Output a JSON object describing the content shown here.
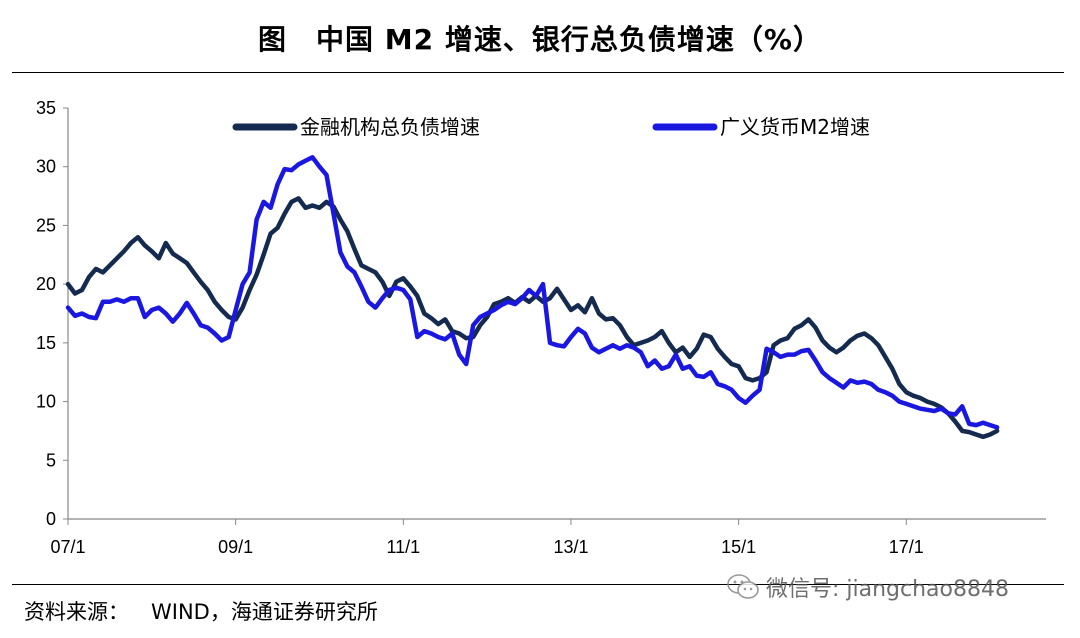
{
  "title": "图　中国 M2 增速、银行总负债增速（%）",
  "source": {
    "label": "资料来源：",
    "text": "WIND，海通证券研究所"
  },
  "watermark": {
    "icon": "wechat-icon",
    "text": "微信号: jiangchao8848"
  },
  "chart_data": {
    "type": "line",
    "title": "图　中国 M2 增速、银行总负债增速（%）",
    "ylim": [
      0,
      35
    ],
    "yticks": [
      0,
      5,
      10,
      15,
      20,
      25,
      30,
      35
    ],
    "x_tick_labels": [
      "07/1",
      "09/1",
      "11/1",
      "13/1",
      "15/1",
      "17/1"
    ],
    "x_tick_months": [
      0,
      24,
      48,
      72,
      96,
      120
    ],
    "x_range_months": [
      0,
      140
    ],
    "grid": false,
    "legend_position": "top",
    "series": [
      {
        "name": "金融机构总负债增速",
        "color": "#152a4f",
        "points": [
          [
            0,
            20
          ],
          [
            1,
            19.2
          ],
          [
            2,
            19.5
          ],
          [
            3,
            20.6
          ],
          [
            4,
            21.3
          ],
          [
            5,
            21
          ],
          [
            6,
            21.6
          ],
          [
            7,
            22.2
          ],
          [
            8,
            22.8
          ],
          [
            9,
            23.5
          ],
          [
            10,
            24
          ],
          [
            11,
            23.3
          ],
          [
            12,
            22.8
          ],
          [
            13,
            22.2
          ],
          [
            14,
            23.5
          ],
          [
            15,
            22.6
          ],
          [
            16,
            22.2
          ],
          [
            17,
            21.8
          ],
          [
            18,
            21
          ],
          [
            19,
            20.2
          ],
          [
            20,
            19.5
          ],
          [
            21,
            18.5
          ],
          [
            22,
            17.8
          ],
          [
            23,
            17.2
          ],
          [
            24,
            17
          ],
          [
            25,
            18
          ],
          [
            26,
            19.5
          ],
          [
            27,
            20.8
          ],
          [
            28,
            22.5
          ],
          [
            29,
            24.3
          ],
          [
            30,
            24.8
          ],
          [
            31,
            26
          ],
          [
            32,
            27
          ],
          [
            33,
            27.3
          ],
          [
            34,
            26.5
          ],
          [
            35,
            26.7
          ],
          [
            36,
            26.5
          ],
          [
            37,
            27
          ],
          [
            38,
            26.6
          ],
          [
            39,
            25.5
          ],
          [
            40,
            24.5
          ],
          [
            41,
            23
          ],
          [
            42,
            21.6
          ],
          [
            43,
            21.3
          ],
          [
            44,
            21
          ],
          [
            45,
            20.2
          ],
          [
            46,
            19
          ],
          [
            47,
            20.2
          ],
          [
            48,
            20.5
          ],
          [
            49,
            19.8
          ],
          [
            50,
            19
          ],
          [
            51,
            17.5
          ],
          [
            52,
            17.1
          ],
          [
            53,
            16.6
          ],
          [
            54,
            17
          ],
          [
            55,
            16
          ],
          [
            56,
            15.8
          ],
          [
            57,
            15.4
          ],
          [
            58,
            15.5
          ],
          [
            59,
            16.5
          ],
          [
            60,
            17.2
          ],
          [
            61,
            18.3
          ],
          [
            62,
            18.5
          ],
          [
            63,
            18.8
          ],
          [
            64,
            18.4
          ],
          [
            65,
            18.9
          ],
          [
            66,
            18.5
          ],
          [
            67,
            19
          ],
          [
            68,
            18.5
          ],
          [
            69,
            18.8
          ],
          [
            70,
            19.6
          ],
          [
            71,
            18.7
          ],
          [
            72,
            17.8
          ],
          [
            73,
            18.2
          ],
          [
            74,
            17.6
          ],
          [
            75,
            18.8
          ],
          [
            76,
            17.5
          ],
          [
            77,
            17
          ],
          [
            78,
            17.1
          ],
          [
            79,
            16.5
          ],
          [
            80,
            15.5
          ],
          [
            81,
            14.8
          ],
          [
            82,
            15
          ],
          [
            83,
            15.2
          ],
          [
            84,
            15.5
          ],
          [
            85,
            16
          ],
          [
            86,
            15
          ],
          [
            87,
            14.2
          ],
          [
            88,
            14.6
          ],
          [
            89,
            13.8
          ],
          [
            90,
            14.5
          ],
          [
            91,
            15.7
          ],
          [
            92,
            15.5
          ],
          [
            93,
            14.5
          ],
          [
            94,
            13.8
          ],
          [
            95,
            13.2
          ],
          [
            96,
            13
          ],
          [
            97,
            12
          ],
          [
            98,
            11.8
          ],
          [
            99,
            12
          ],
          [
            100,
            12.5
          ],
          [
            101,
            14.8
          ],
          [
            102,
            15.2
          ],
          [
            103,
            15.4
          ],
          [
            104,
            16.2
          ],
          [
            105,
            16.5
          ],
          [
            106,
            17
          ],
          [
            107,
            16.3
          ],
          [
            108,
            15.2
          ],
          [
            109,
            14.6
          ],
          [
            110,
            14.2
          ],
          [
            111,
            14.6
          ],
          [
            112,
            15.2
          ],
          [
            113,
            15.6
          ],
          [
            114,
            15.8
          ],
          [
            115,
            15.4
          ],
          [
            116,
            14.8
          ],
          [
            117,
            13.8
          ],
          [
            118,
            12.8
          ],
          [
            119,
            11.5
          ],
          [
            120,
            10.8
          ],
          [
            121,
            10.5
          ],
          [
            122,
            10.3
          ],
          [
            123,
            10
          ],
          [
            124,
            9.8
          ],
          [
            125,
            9.5
          ],
          [
            126,
            9
          ],
          [
            127,
            8.3
          ],
          [
            128,
            7.5
          ],
          [
            129,
            7.4
          ],
          [
            130,
            7.2
          ],
          [
            131,
            7
          ],
          [
            132,
            7.2
          ],
          [
            133,
            7.5
          ]
        ]
      },
      {
        "name": "广义货币M2增速",
        "color": "#1a18e0",
        "points": [
          [
            0,
            18
          ],
          [
            1,
            17.3
          ],
          [
            2,
            17.5
          ],
          [
            3,
            17.2
          ],
          [
            4,
            17.1
          ],
          [
            5,
            18.5
          ],
          [
            6,
            18.5
          ],
          [
            7,
            18.7
          ],
          [
            8,
            18.5
          ],
          [
            9,
            18.8
          ],
          [
            10,
            18.8
          ],
          [
            11,
            17.2
          ],
          [
            12,
            17.8
          ],
          [
            13,
            18
          ],
          [
            14,
            17.5
          ],
          [
            15,
            16.8
          ],
          [
            16,
            17.5
          ],
          [
            17,
            18.4
          ],
          [
            18,
            17.5
          ],
          [
            19,
            16.5
          ],
          [
            20,
            16.3
          ],
          [
            21,
            15.8
          ],
          [
            22,
            15.2
          ],
          [
            23,
            15.5
          ],
          [
            24,
            17.8
          ],
          [
            25,
            20
          ],
          [
            26,
            21
          ],
          [
            27,
            25.5
          ],
          [
            28,
            27
          ],
          [
            29,
            26.5
          ],
          [
            30,
            28.5
          ],
          [
            31,
            29.8
          ],
          [
            32,
            29.7
          ],
          [
            33,
            30.2
          ],
          [
            34,
            30.5
          ],
          [
            35,
            30.8
          ],
          [
            36,
            30
          ],
          [
            37,
            29.3
          ],
          [
            38,
            26
          ],
          [
            39,
            22.7
          ],
          [
            40,
            21.5
          ],
          [
            41,
            21
          ],
          [
            42,
            19.8
          ],
          [
            43,
            18.5
          ],
          [
            44,
            18
          ],
          [
            45,
            18.8
          ],
          [
            46,
            19.5
          ],
          [
            47,
            19.7
          ],
          [
            48,
            19.5
          ],
          [
            49,
            18.7
          ],
          [
            50,
            15.5
          ],
          [
            51,
            16
          ],
          [
            52,
            15.8
          ],
          [
            53,
            15.5
          ],
          [
            54,
            15.3
          ],
          [
            55,
            15.8
          ],
          [
            56,
            14
          ],
          [
            57,
            13.2
          ],
          [
            58,
            16.5
          ],
          [
            59,
            17.2
          ],
          [
            60,
            17.5
          ],
          [
            61,
            17.8
          ],
          [
            62,
            18.2
          ],
          [
            63,
            18.5
          ],
          [
            64,
            18.3
          ],
          [
            65,
            18.8
          ],
          [
            66,
            19.5
          ],
          [
            67,
            19
          ],
          [
            68,
            20
          ],
          [
            69,
            15
          ],
          [
            70,
            14.8
          ],
          [
            71,
            14.7
          ],
          [
            72,
            15.5
          ],
          [
            73,
            16.2
          ],
          [
            74,
            15.8
          ],
          [
            75,
            14.6
          ],
          [
            76,
            14.2
          ],
          [
            77,
            14.5
          ],
          [
            78,
            14.8
          ],
          [
            79,
            14.5
          ],
          [
            80,
            14.8
          ],
          [
            81,
            14.6
          ],
          [
            82,
            14.2
          ],
          [
            83,
            13
          ],
          [
            84,
            13.5
          ],
          [
            85,
            12.8
          ],
          [
            86,
            13
          ],
          [
            87,
            14
          ],
          [
            88,
            12.8
          ],
          [
            89,
            13
          ],
          [
            90,
            12.2
          ],
          [
            91,
            12.1
          ],
          [
            92,
            12.5
          ],
          [
            93,
            11.5
          ],
          [
            94,
            11.3
          ],
          [
            95,
            11
          ],
          [
            96,
            10.3
          ],
          [
            97,
            9.9
          ],
          [
            98,
            10.5
          ],
          [
            99,
            11
          ],
          [
            100,
            14.5
          ],
          [
            101,
            14.2
          ],
          [
            102,
            13.8
          ],
          [
            103,
            14
          ],
          [
            104,
            14
          ],
          [
            105,
            14.3
          ],
          [
            106,
            14.4
          ],
          [
            107,
            13.5
          ],
          [
            108,
            12.5
          ],
          [
            109,
            12
          ],
          [
            110,
            11.6
          ],
          [
            111,
            11.2
          ],
          [
            112,
            11.8
          ],
          [
            113,
            11.6
          ],
          [
            114,
            11.7
          ],
          [
            115,
            11.5
          ],
          [
            116,
            11
          ],
          [
            117,
            10.8
          ],
          [
            118,
            10.5
          ],
          [
            119,
            10
          ],
          [
            120,
            9.8
          ],
          [
            121,
            9.6
          ],
          [
            122,
            9.4
          ],
          [
            123,
            9.3
          ],
          [
            124,
            9.2
          ],
          [
            125,
            9.4
          ],
          [
            126,
            9
          ],
          [
            127,
            8.9
          ],
          [
            128,
            9.6
          ],
          [
            129,
            8.1
          ],
          [
            130,
            8
          ],
          [
            131,
            8.2
          ],
          [
            132,
            8
          ],
          [
            133,
            7.8
          ]
        ]
      }
    ]
  }
}
